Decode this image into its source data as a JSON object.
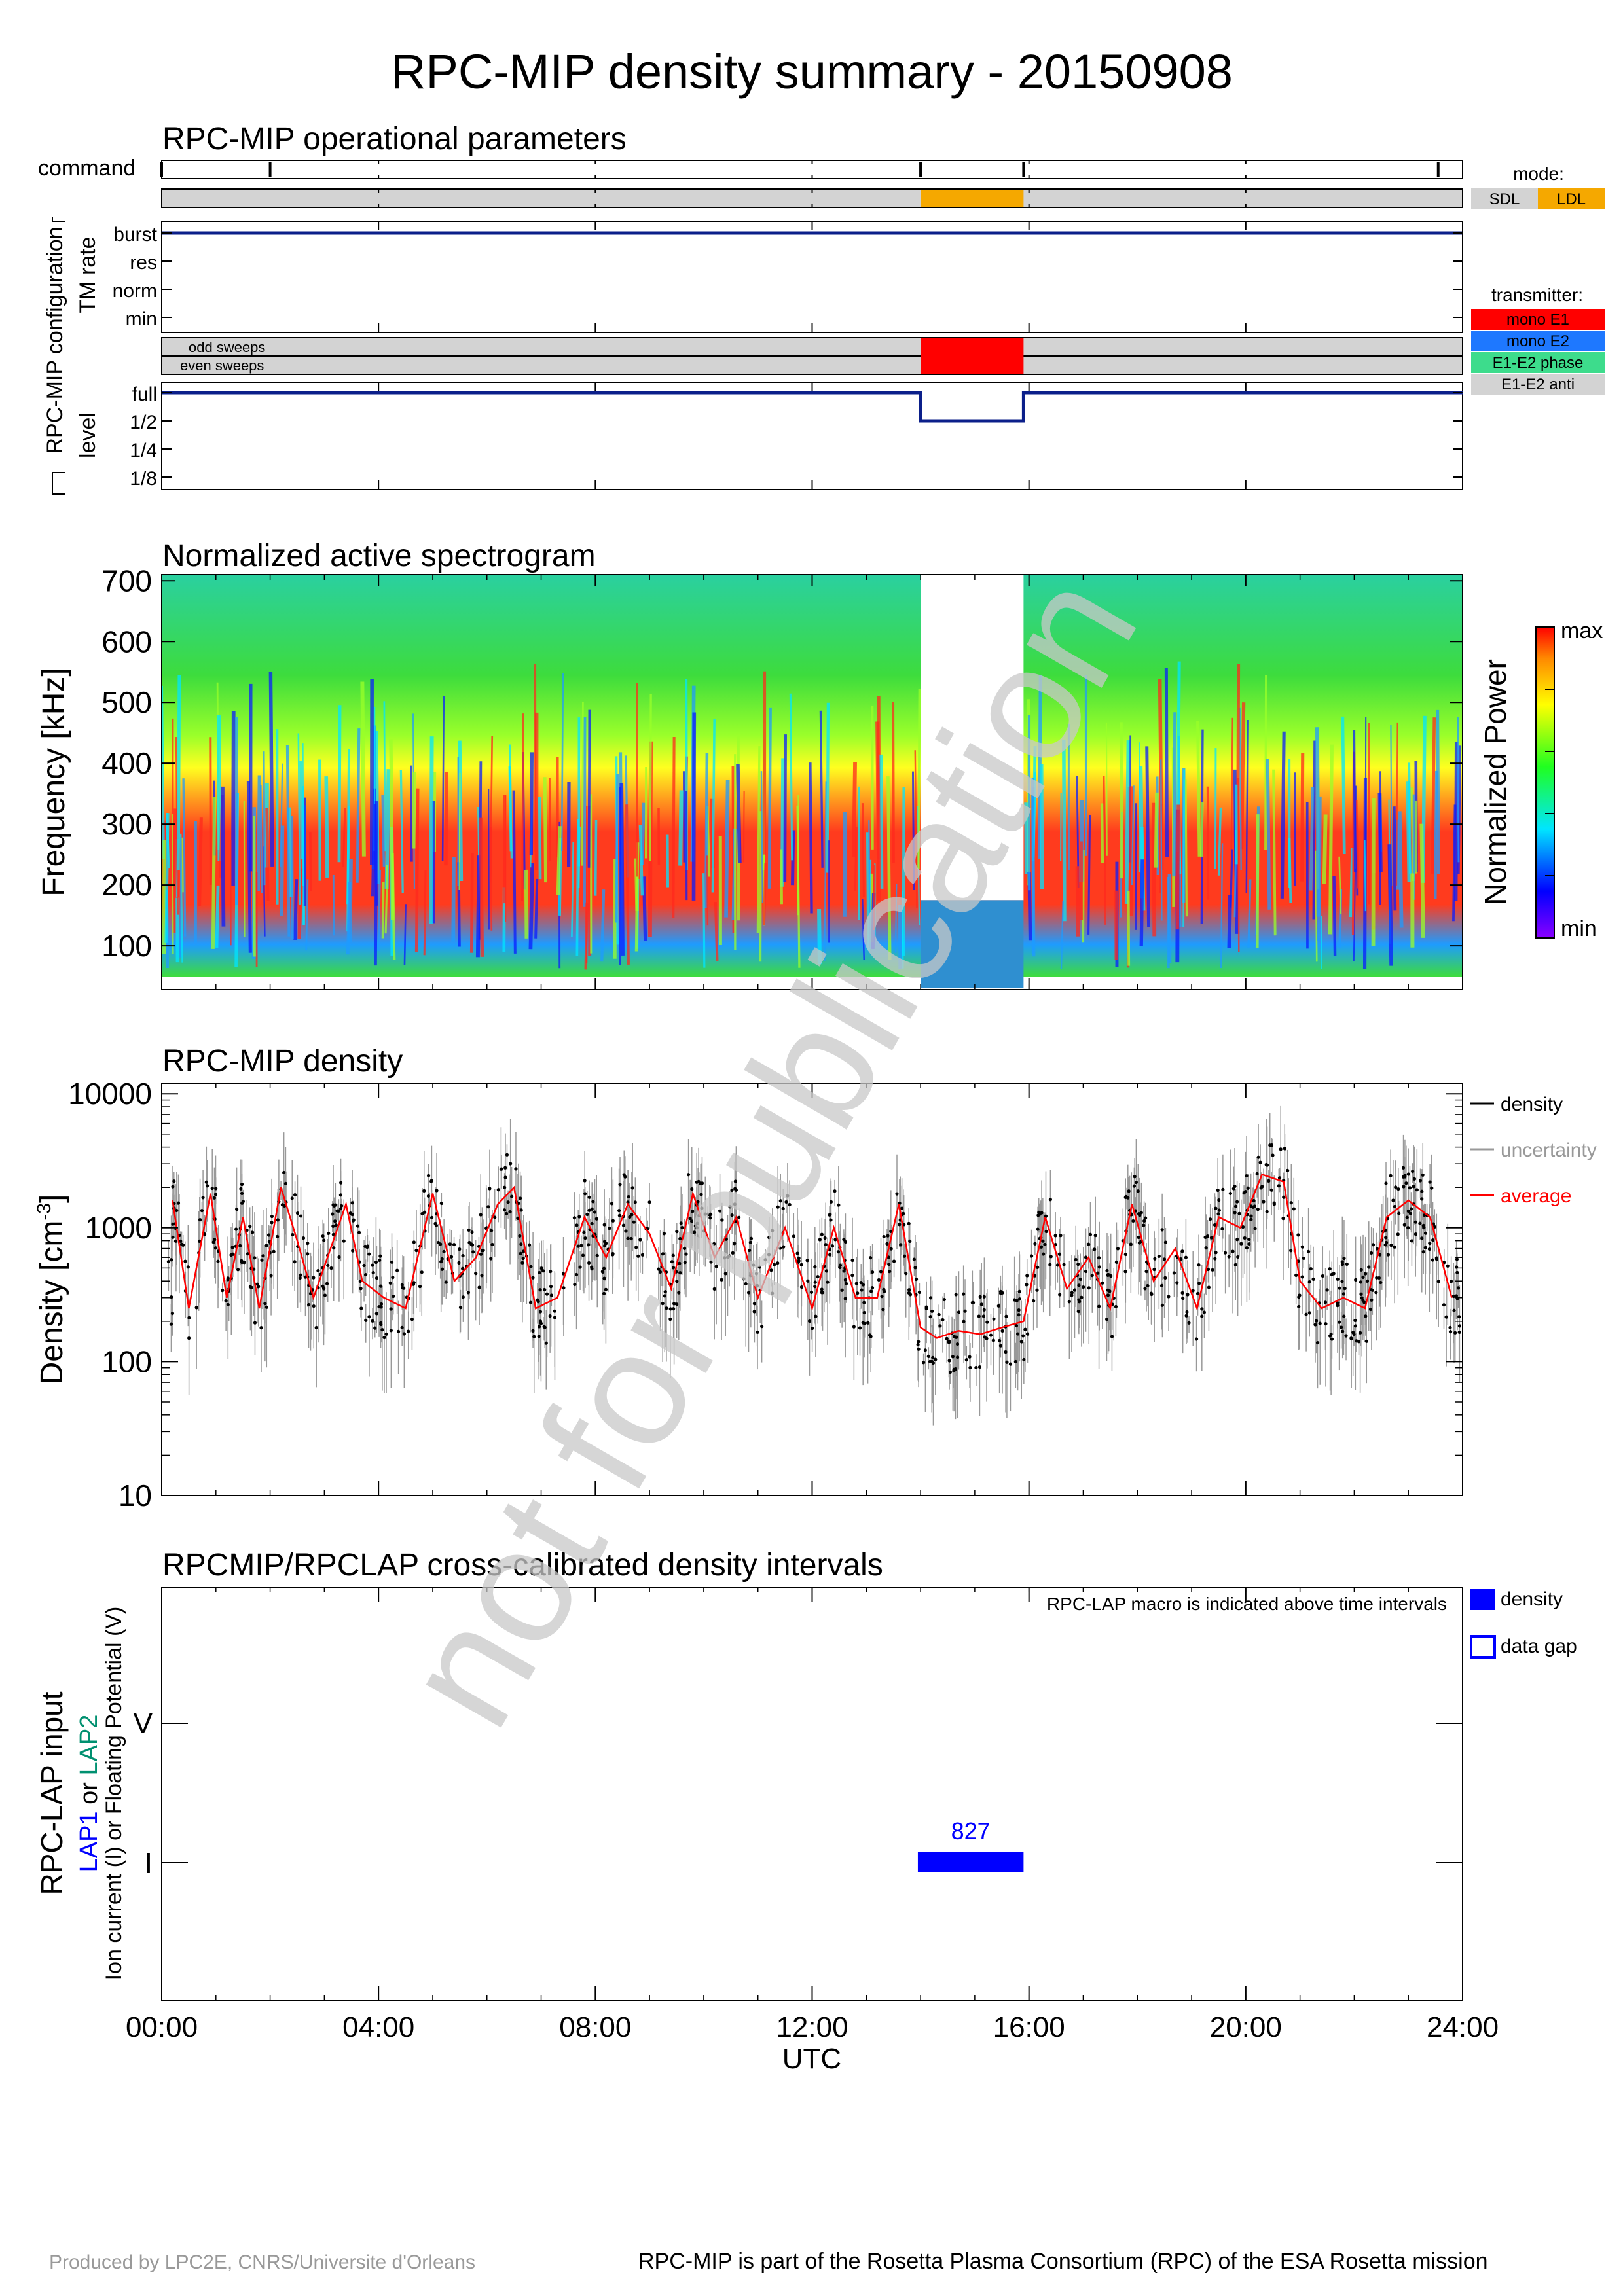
{
  "title": "RPC-MIP density summary - 20150908",
  "watermark": "not for publication",
  "colors": {
    "axis": "#000000",
    "navy": "#0b1f8a",
    "mode_bar": "#d3d3d3",
    "ldl": "#f5a800",
    "mono_e1": "#ff0000",
    "mono_e2": "#1e78ff",
    "phase": "#3ddc8c",
    "anti": "#d3d3d3",
    "density": "#000000",
    "uncertainty": "#999999",
    "average": "#ff0000",
    "lap_blue": "#0000ff",
    "watermark": "#c8c8c8"
  },
  "ops": {
    "title": "RPC-MIP operational parameters",
    "command_label": "command",
    "side_label": "RPC-MIP configuration",
    "tm_label": "TM rate",
    "tm_levels": [
      "burst",
      "res",
      "norm",
      "min"
    ],
    "sweep_labels": [
      "odd sweeps",
      "even sweeps"
    ],
    "level_label": "level",
    "level_ticks": [
      "full",
      "1/2",
      "1/4",
      "1/8"
    ],
    "mode_legend_title": "mode:",
    "mode_legend": [
      "SDL",
      "LDL"
    ],
    "transmitter_legend_title": "transmitter:",
    "transmitter_legend": [
      "mono E1",
      "mono E2",
      "E1-E2 phase",
      "E1-E2 anti"
    ],
    "command_times_h": [
      0,
      2.0,
      14.0,
      15.9,
      23.55
    ],
    "ldl_interval_h": [
      14.0,
      15.9
    ],
    "mono_e1_interval_h": [
      14.0,
      15.9
    ],
    "level_profile": [
      [
        0,
        "full"
      ],
      [
        14.0,
        "1/2"
      ],
      [
        15.9,
        "full"
      ],
      [
        24,
        "full"
      ]
    ],
    "tm_rate": "burst"
  },
  "spectrogram": {
    "title": "Normalized active spectrogram",
    "ylabel": "Frequency [kHz]",
    "yticks": [
      "100",
      "200",
      "300",
      "400",
      "500",
      "600",
      "700"
    ],
    "ylim": [
      28,
      710
    ],
    "colorbar_label": "Normalized Power",
    "colorbar_max": "max",
    "colorbar_min": "min",
    "gap_interval_h": [
      14.0,
      15.9
    ],
    "gap_low_band_max_khz": 175
  },
  "density": {
    "title": "RPC-MIP density",
    "ylabel": "Density [cm",
    "ylabel_sup": "-3",
    "ylabel_end": "]",
    "yticks": [
      "10",
      "100",
      "1000",
      "10000"
    ],
    "ylim": [
      10,
      12000
    ],
    "legend": [
      "density",
      "uncertainty",
      "average"
    ]
  },
  "lap": {
    "title": "RPCMIP/RPCLAP cross-calibrated density intervals",
    "note": "RPC-LAP macro is indicated above time intervals",
    "ylabel_main": "RPC-LAP input",
    "ylabel_lap1": "LAP1",
    "ylabel_or": " or ",
    "ylabel_lap2": "LAP2",
    "ylabel_sub": "Ion current (I) or Floating Potential (V)",
    "yticks": [
      "I",
      "V"
    ],
    "legend": [
      "density",
      "data gap"
    ],
    "intervals": [
      {
        "start_h": 13.95,
        "end_h": 15.9,
        "row": "I",
        "macro": "827"
      }
    ]
  },
  "x_axis": {
    "label": "UTC",
    "ticks": [
      "00:00",
      "04:00",
      "08:00",
      "12:00",
      "16:00",
      "20:00",
      "24:00"
    ],
    "xlim_h": [
      0,
      24
    ]
  },
  "footer": {
    "left": "Produced by LPC2E, CNRS/Universite d'Orleans",
    "right": "RPC-MIP is part of the Rosetta Plasma Consortium (RPC) of the ESA Rosetta mission"
  },
  "chart_data": [
    {
      "type": "table",
      "title": "RPC-MIP operational parameters",
      "rows": [
        {
          "parameter": "mode",
          "SDL": [
            [
              0,
              14.0
            ],
            [
              15.9,
              24
            ]
          ],
          "LDL": [
            [
              14.0,
              15.9
            ]
          ]
        },
        {
          "parameter": "TM rate",
          "value": "burst",
          "interval": [
            0,
            24
          ]
        },
        {
          "parameter": "transmitter",
          "mono E1": [
            [
              14.0,
              15.9
            ]
          ]
        },
        {
          "parameter": "level",
          "full": [
            [
              0,
              14.0
            ],
            [
              15.9,
              24
            ]
          ],
          "1/2": [
            [
              14.0,
              15.9
            ]
          ]
        }
      ]
    },
    {
      "type": "heatmap",
      "title": "Normalized active spectrogram",
      "xlabel": "UTC",
      "ylabel": "Frequency [kHz]",
      "xlim": [
        0,
        24
      ],
      "ylim": [
        28,
        710
      ],
      "note": "strong power band ~150-300 kHz; gap 14:00-15:54 above ~175 kHz"
    },
    {
      "type": "scatter",
      "title": "RPC-MIP density",
      "xlabel": "UTC",
      "ylabel": "Density [cm-3]",
      "yscale": "log",
      "xlim": [
        0,
        24
      ],
      "ylim": [
        10,
        10000
      ],
      "series": [
        {
          "name": "average",
          "x": [
            0.2,
            0.5,
            0.9,
            1.2,
            1.5,
            1.8,
            2.2,
            2.5,
            2.8,
            3.4,
            3.7,
            4.1,
            4.5,
            5.0,
            5.4,
            5.8,
            6.2,
            6.5,
            6.9,
            7.3,
            7.8,
            8.2,
            8.6,
            9.0,
            9.4,
            9.8,
            10.2,
            10.6,
            11.0,
            11.5,
            12.0,
            12.4,
            12.8,
            13.2,
            13.6,
            14.0,
            14.3,
            14.7,
            15.1,
            15.5,
            15.9,
            16.3,
            16.7,
            17.1,
            17.5,
            17.9,
            18.3,
            18.7,
            19.1,
            19.5,
            19.9,
            20.3,
            20.7,
            21.0,
            21.4,
            21.8,
            22.2,
            22.6,
            23.0,
            23.4,
            23.8
          ],
          "y": [
            1600,
            250,
            1800,
            300,
            1200,
            250,
            2000,
            800,
            300,
            1500,
            400,
            300,
            250,
            1800,
            400,
            600,
            1500,
            2000,
            250,
            300,
            1200,
            600,
            1500,
            900,
            350,
            1800,
            600,
            1200,
            300,
            1000,
            250,
            1000,
            300,
            300,
            1500,
            180,
            150,
            170,
            160,
            180,
            200,
            1200,
            350,
            600,
            250,
            1500,
            400,
            700,
            250,
            1200,
            1000,
            2500,
            2200,
            400,
            250,
            300,
            250,
            1200,
            1600,
            1200,
            300
          ]
        }
      ]
    },
    {
      "type": "table",
      "title": "RPCMIP/RPCLAP cross-calibrated density intervals",
      "rows": [
        {
          "start": "13:57",
          "end": "15:54",
          "input": "I",
          "macro": "827",
          "status": "density"
        }
      ]
    }
  ]
}
